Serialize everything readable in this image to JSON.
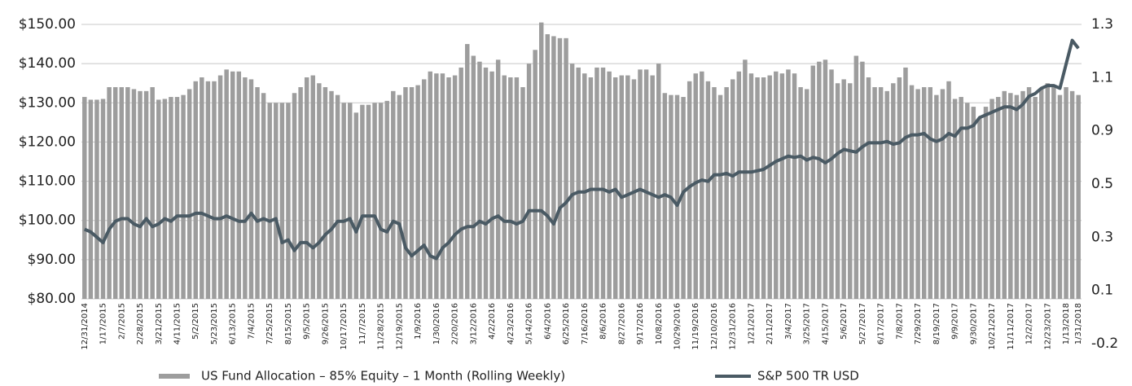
{
  "chart_data": {
    "type": "combo",
    "categories": [
      "12/31/2014",
      null,
      null,
      "1/17/2015",
      null,
      null,
      "2/7/2015",
      null,
      null,
      "2/28/2015",
      null,
      null,
      "3/21/2015",
      null,
      null,
      "4/11/2015",
      null,
      null,
      "5/2/2015",
      null,
      null,
      "5/23/2015",
      null,
      null,
      "6/13/2015",
      null,
      null,
      "7/4/2015",
      null,
      null,
      "7/25/2015",
      null,
      null,
      "8/15/2015",
      null,
      null,
      "9/5/2015",
      null,
      null,
      "9/26/2015",
      null,
      null,
      "10/17/2015",
      null,
      null,
      "11/7/2015",
      null,
      null,
      "11/28/2015",
      null,
      null,
      "12/19/2015",
      null,
      null,
      "1/9/2016",
      null,
      null,
      "1/30/2016",
      null,
      null,
      "2/20/2016",
      null,
      null,
      "3/12/2016",
      null,
      null,
      "4/2/2016",
      null,
      null,
      "4/23/2016",
      null,
      null,
      "5/14/2016",
      null,
      null,
      "6/4/2016",
      null,
      null,
      "6/25/2016",
      null,
      null,
      "7/16/2016",
      null,
      null,
      "8/6/2016",
      null,
      null,
      "8/27/2016",
      null,
      null,
      "9/17/2016",
      null,
      null,
      "10/8/2016",
      null,
      null,
      "10/29/2016",
      null,
      null,
      "11/19/2016",
      null,
      null,
      "12/10/2016",
      null,
      null,
      "12/31/2016",
      null,
      null,
      "1/21/2017",
      null,
      null,
      "2/11/2017",
      null,
      null,
      "3/4/2017",
      null,
      null,
      "3/25/2017",
      null,
      null,
      "4/15/2017",
      null,
      null,
      "5/6/2017",
      null,
      null,
      "5/27/2017",
      null,
      null,
      "6/17/2017",
      null,
      null,
      "7/8/2017",
      null,
      null,
      "7/29/2017",
      null,
      null,
      "8/19/2017",
      null,
      null,
      "9/9/2017",
      null,
      null,
      "9/30/2017",
      null,
      null,
      "10/21/2017",
      null,
      null,
      "11/11/2017",
      null,
      null,
      "12/2/2017",
      null,
      null,
      "12/23/2017",
      null,
      null,
      "1/13/2018",
      null,
      "1/31/2018"
    ],
    "series": [
      {
        "name": "US Fund  Allocation – 85% Equity – 1 Month (Rolling Weekly)",
        "type": "bar",
        "color": "#9d9d9d",
        "values": [
          131.5,
          130.8,
          130.8,
          131,
          134,
          134,
          134,
          134,
          133.5,
          133,
          133,
          134,
          130.8,
          131,
          131.5,
          131.5,
          132,
          133.5,
          135.5,
          136.5,
          135.5,
          135.5,
          137,
          138.5,
          138,
          138,
          136.5,
          136,
          134,
          132.5,
          130,
          130,
          130,
          130,
          132.5,
          134,
          136.5,
          137,
          135,
          134,
          133,
          132,
          130,
          130,
          127.5,
          129.5,
          129.5,
          130,
          130,
          130.5,
          133,
          132,
          134,
          134,
          134.5,
          136,
          138,
          137.5,
          137.5,
          136.5,
          137,
          139,
          145,
          142,
          140.5,
          139,
          138,
          141,
          137,
          136.5,
          136.5,
          134,
          140,
          143.5,
          150.5,
          147.5,
          147,
          146.5,
          146.5,
          140,
          139,
          137.5,
          136.5,
          139,
          139,
          138,
          136.5,
          137,
          137,
          136,
          138.5,
          138.5,
          137,
          140,
          132.5,
          132,
          132,
          131.5,
          135.5,
          137.5,
          138,
          135.5,
          134,
          132,
          134,
          136,
          138,
          141,
          137.5,
          136.5,
          136.5,
          137,
          138,
          137.5,
          138.5,
          137.5,
          134,
          133.5,
          139.5,
          140.5,
          141,
          138.5,
          135,
          136,
          135,
          142,
          140.5,
          136.5,
          134,
          134,
          133,
          135,
          136.5,
          139,
          134.5,
          133.5,
          134,
          134,
          132,
          133.5,
          135.5,
          131,
          131.5,
          130,
          129,
          126,
          129,
          131,
          131.5,
          133,
          132.5,
          132,
          133,
          134,
          131.5,
          133.5,
          135,
          134,
          132,
          134,
          133,
          132
        ]
      },
      {
        "name": "S&P 500 TR USD",
        "type": "line",
        "axis": "y2",
        "color": "#4a5a64",
        "values": [
          0.33,
          0.32,
          0.3,
          0.28,
          0.33,
          0.36,
          0.37,
          0.37,
          0.35,
          0.34,
          0.37,
          0.34,
          0.35,
          0.37,
          0.36,
          0.38,
          0.38,
          0.38,
          0.39,
          0.39,
          0.38,
          0.37,
          0.37,
          0.38,
          0.37,
          0.36,
          0.36,
          0.39,
          0.36,
          0.37,
          0.36,
          0.37,
          0.28,
          0.29,
          0.25,
          0.28,
          0.28,
          0.26,
          0.28,
          0.31,
          0.33,
          0.36,
          0.36,
          0.37,
          0.32,
          0.38,
          0.38,
          0.38,
          0.33,
          0.32,
          0.36,
          0.35,
          0.26,
          0.23,
          0.25,
          0.27,
          0.23,
          0.22,
          0.26,
          0.28,
          0.31,
          0.33,
          0.34,
          0.34,
          0.36,
          0.35,
          0.37,
          0.38,
          0.36,
          0.36,
          0.35,
          0.36,
          0.4,
          0.4,
          0.4,
          0.38,
          0.35,
          0.41,
          0.43,
          0.46,
          0.47,
          0.47,
          0.48,
          0.48,
          0.48,
          0.47,
          0.48,
          0.45,
          0.46,
          0.47,
          0.48,
          0.47,
          0.46,
          0.45,
          0.46,
          0.45,
          0.42,
          0.47,
          0.49,
          0.51,
          0.53,
          0.52,
          0.57,
          0.57,
          0.58,
          0.56,
          0.59,
          0.59,
          0.59,
          0.6,
          0.61,
          0.64,
          0.67,
          0.69,
          0.71,
          0.7,
          0.71,
          0.68,
          0.7,
          0.69,
          0.66,
          0.69,
          0.73,
          0.76,
          0.75,
          0.74,
          0.78,
          0.81,
          0.81,
          0.81,
          0.82,
          0.8,
          0.81,
          0.85,
          0.87,
          0.87,
          0.88,
          0.84,
          0.82,
          0.84,
          0.88,
          0.86,
          0.91,
          0.91,
          0.92,
          0.95,
          0.96,
          0.97,
          0.98,
          0.99,
          0.99,
          0.98,
          1.0,
          1.03,
          1.04,
          1.06,
          1.07,
          1.07,
          1.06,
          1.15,
          1.24,
          1.21
        ]
      }
    ],
    "ylim": [
      80,
      150
    ],
    "yticks": [
      {
        "value": 80,
        "label": "$80.00"
      },
      {
        "value": 90,
        "label": "$90.00"
      },
      {
        "value": 100,
        "label": "$100.00"
      },
      {
        "value": 110,
        "label": "$110.00"
      },
      {
        "value": 120,
        "label": "$120.00"
      },
      {
        "value": 130,
        "label": "$130.00"
      },
      {
        "value": 140,
        "label": "$140.00"
      },
      {
        "value": 150,
        "label": "$150.00"
      }
    ],
    "y2lim": [
      -0.2,
      1.3
    ],
    "y2ticks": [
      1.3,
      1.1,
      0.9,
      0.5,
      0.3,
      0.1,
      -0.2
    ],
    "grid": true
  }
}
